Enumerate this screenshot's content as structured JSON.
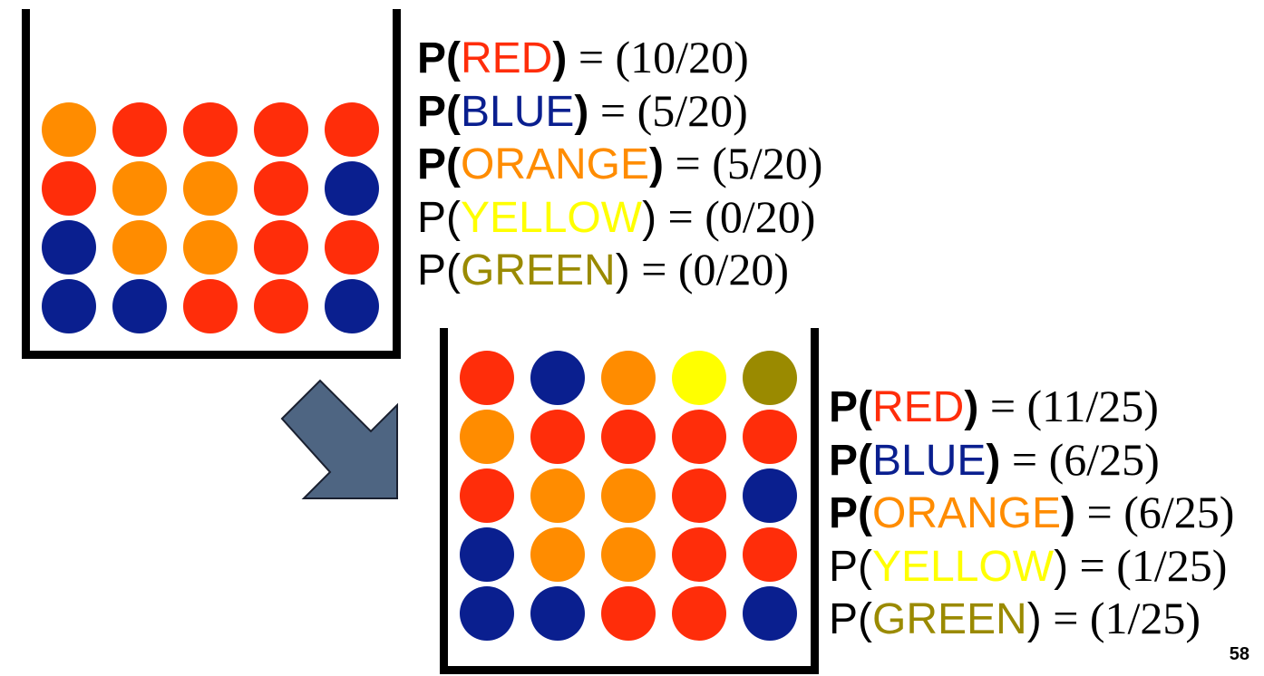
{
  "colors": {
    "RED": "#ff2d0a",
    "BLUE": "#0a1f8f",
    "ORANGE": "#ff8c00",
    "YELLOW": "#ffff00",
    "GREEN": "#9a8a00",
    "arrow": "#4e6582"
  },
  "top_jar": {
    "balls": [
      [
        "ORANGE",
        "RED",
        "RED",
        "RED",
        "RED"
      ],
      [
        "RED",
        "ORANGE",
        "ORANGE",
        "RED",
        "BLUE"
      ],
      [
        "BLUE",
        "ORANGE",
        "ORANGE",
        "RED",
        "RED"
      ],
      [
        "BLUE",
        "BLUE",
        "RED",
        "RED",
        "BLUE"
      ]
    ],
    "probabilities": [
      {
        "prefix": "P(",
        "color_name": "RED",
        "suffix": ")",
        "value": " = (10/20)",
        "bold": true
      },
      {
        "prefix": "P(",
        "color_name": "BLUE",
        "suffix": ")",
        "value": " = (5/20)",
        "bold": true
      },
      {
        "prefix": "P(",
        "color_name": "ORANGE",
        "suffix": ")",
        "value": " = (5/20)",
        "bold": true
      },
      {
        "prefix": "P(",
        "color_name": "YELLOW",
        "suffix": ")",
        "value": " = (0/20)",
        "bold": false
      },
      {
        "prefix": "P(",
        "color_name": "GREEN",
        "suffix": ")",
        "value": " = (0/20)",
        "bold": false
      }
    ]
  },
  "bottom_jar": {
    "balls": [
      [
        "RED",
        "BLUE",
        "ORANGE",
        "YELLOW",
        "GREEN"
      ],
      [
        "ORANGE",
        "RED",
        "RED",
        "RED",
        "RED"
      ],
      [
        "RED",
        "ORANGE",
        "ORANGE",
        "RED",
        "BLUE"
      ],
      [
        "BLUE",
        "ORANGE",
        "ORANGE",
        "RED",
        "RED"
      ],
      [
        "BLUE",
        "BLUE",
        "RED",
        "RED",
        "BLUE"
      ]
    ],
    "probabilities": [
      {
        "prefix": "P(",
        "color_name": "RED",
        "suffix": ")",
        "value": " = (11/25)",
        "bold": true
      },
      {
        "prefix": "P(",
        "color_name": "BLUE",
        "suffix": ")",
        "value": " = (6/25)",
        "bold": true
      },
      {
        "prefix": "P(",
        "color_name": "ORANGE",
        "suffix": ")",
        "value": " = (6/25)",
        "bold": true
      },
      {
        "prefix": "P(",
        "color_name": "YELLOW",
        "suffix": ")",
        "value": " = (1/25)",
        "bold": false
      },
      {
        "prefix": "P(",
        "color_name": "GREEN",
        "suffix": ")",
        "value": " = (1/25)",
        "bold": false
      }
    ]
  },
  "page_number": "58"
}
